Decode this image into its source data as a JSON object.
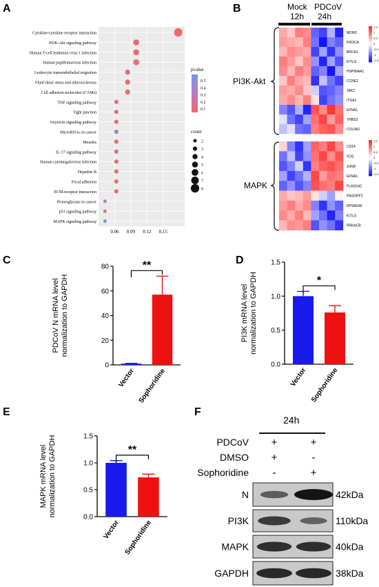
{
  "panels": {
    "A": {
      "label": "A",
      "pathways": [
        "Cytokine-cytokine receptor interaction",
        "PI3K-Akt signaling pathway",
        "Human T-cell leukemia virus 1 infection",
        "Human papillomavirus infection",
        "Leukocyte transendothelial migration",
        "Fluid shear stress and atherosclerosis",
        "Cell adhesion molecules (CAMs)",
        "TNF signaling pathway",
        "Tight junction",
        "Oxytocin signaling pathway",
        "MicroRNAs in cancer",
        "Measles",
        "IL-17 signaling pathway",
        "Human cytomegalovirus infection",
        "Hepatitis B",
        "Focal adhesion",
        "ECM-receptor interaction",
        "Proteoglycans in cancer",
        "p53 signaling pathway",
        "MAPK signaling pathway"
      ],
      "x_ticks": [
        "0.06",
        "0.09",
        "0.12",
        "0.15"
      ],
      "pvalue_title": "pvalue",
      "pvalue_ticks": [
        "0.5",
        "0.4",
        "0.3",
        "0.2",
        "0.1"
      ],
      "count_title": "count",
      "count_ticks": [
        "2",
        "3",
        "4",
        "5",
        "6",
        "7",
        "8"
      ]
    },
    "B": {
      "label": "B",
      "mock": "Mock",
      "mock_time": "12h",
      "pdcov": "PDCoV",
      "pdcov_time": "24h",
      "group1": "PI3K-Akt",
      "group2": "MAPK",
      "genes1": [
        "MDM2",
        "PIK3CA",
        "BRCA1",
        "KITLG",
        "HSP90AA1",
        "CCNE2",
        "JAK2",
        "ITGA1",
        "EFNA1",
        "THBS3",
        "COL9A2"
      ],
      "genes2": [
        "CD14",
        "FOS",
        "JUND",
        "EFNA1",
        "PLA2G4C",
        "RASGRF2",
        "RPS6KA5",
        "KITLG",
        "PRKACB"
      ],
      "legend_ticks": [
        "1.5",
        "1",
        "0.5",
        "0",
        "-0.5",
        "-1",
        "-1.5"
      ]
    },
    "C": {
      "label": "C",
      "ylabel1": "PDCoV N mRNA level",
      "ylabel2": "normalization to GAPDH",
      "sig": "**",
      "y_ticks": [
        "0",
        "20",
        "40",
        "60",
        "80"
      ]
    },
    "D": {
      "label": "D",
      "ylabel1": "PI3K mRNA level",
      "ylabel2": "normalization to GAPDH",
      "sig": "*",
      "y_ticks": [
        "0.0",
        "0.5",
        "1.0",
        "1.5"
      ]
    },
    "E": {
      "label": "E",
      "ylabel1": "MAPK mRNA level",
      "ylabel2": "normalization to GAPDH",
      "sig": "**",
      "y_ticks": [
        "0.0",
        "0.5",
        "1.0",
        "1.5"
      ]
    },
    "F": {
      "label": "F",
      "time": "24h",
      "rows": [
        {
          "name": "PDCoV",
          "lane1": "+",
          "lane2": "+"
        },
        {
          "name": "DMSO",
          "lane1": "+",
          "lane2": "-"
        },
        {
          "name": "Sophoridine",
          "lane1": "-",
          "lane2": "+"
        }
      ],
      "blots": [
        {
          "name": "N",
          "size": "42kDa"
        },
        {
          "name": "PI3K",
          "size": "110kDa"
        },
        {
          "name": "MAPK",
          "size": "40kDa"
        },
        {
          "name": "GAPDH",
          "size": "38kDa"
        }
      ]
    }
  },
  "chart_data": [
    {
      "type": "scatter",
      "panel": "A",
      "categories": [
        "Cytokine-cytokine receptor interaction",
        "PI3K-Akt signaling pathway",
        "Human T-cell leukemia virus 1 infection",
        "Human papillomavirus infection",
        "Leukocyte transendothelial migration",
        "Fluid shear stress and atherosclerosis",
        "Cell adhesion molecules (CAMs)",
        "TNF signaling pathway",
        "Tight junction",
        "Oxytocin signaling pathway",
        "MicroRNAs in cancer",
        "Measles",
        "IL-17 signaling pathway",
        "Human cytomegalovirus infection",
        "Hepatitis B",
        "Focal adhesion",
        "ECM-receptor interaction",
        "Proteoglycans in cancer",
        "p53 signaling pathway",
        "MAPK signaling pathway"
      ],
      "x": [
        0.178,
        0.1,
        0.1,
        0.1,
        0.084,
        0.084,
        0.084,
        0.063,
        0.063,
        0.063,
        0.063,
        0.063,
        0.063,
        0.063,
        0.063,
        0.063,
        0.063,
        0.042,
        0.042,
        0.042
      ],
      "count": [
        8,
        5,
        5,
        5,
        4,
        4,
        4,
        3,
        3,
        3,
        3,
        3,
        3,
        3,
        3,
        3,
        3,
        2,
        2,
        2
      ],
      "pvalue": [
        0.02,
        0.04,
        0.05,
        0.05,
        0.04,
        0.04,
        0.05,
        0.06,
        0.06,
        0.07,
        0.35,
        0.05,
        0.05,
        0.06,
        0.05,
        0.06,
        0.05,
        0.3,
        0.04,
        0.55
      ],
      "xlim": [
        0.03,
        0.19
      ],
      "colors": {
        "low": "#f06a6a",
        "high": "#6a9ae8"
      }
    },
    {
      "type": "bar",
      "panel": "C",
      "categories": [
        "Vector",
        "Sophoridine"
      ],
      "values": [
        1,
        57
      ],
      "errors": [
        0.3,
        15
      ],
      "ylim": [
        0,
        80
      ],
      "colors": [
        "#1a1aee",
        "#ee1111"
      ]
    },
    {
      "type": "bar",
      "panel": "D",
      "categories": [
        "Vector",
        "Sophoridine"
      ],
      "values": [
        1.0,
        0.76
      ],
      "errors": [
        0.07,
        0.1
      ],
      "ylim": [
        0,
        1.5
      ],
      "colors": [
        "#1a1aee",
        "#ee1111"
      ]
    },
    {
      "type": "bar",
      "panel": "E",
      "categories": [
        "Vector",
        "Sophoridine"
      ],
      "values": [
        1.0,
        0.73
      ],
      "errors": [
        0.04,
        0.06
      ],
      "ylim": [
        0,
        1.5
      ],
      "colors": [
        "#1a1aee",
        "#ee1111"
      ]
    }
  ],
  "heatmap": {
    "pi3k": [
      [
        0.6,
        0.4,
        0.9,
        0.8,
        -1,
        -1.2,
        -0.5,
        -1.4
      ],
      [
        0.7,
        0.6,
        0.5,
        0.9,
        -0.9,
        -1.5,
        -0.8,
        -1.0
      ],
      [
        0.5,
        0.8,
        0.7,
        0.6,
        -1.2,
        -0.6,
        -1.3,
        -0.7
      ],
      [
        0.9,
        0.7,
        0.4,
        0.8,
        -0.7,
        -1.4,
        -0.6,
        -1.1
      ],
      [
        0.8,
        0.5,
        0.9,
        0.7,
        -1.0,
        -0.8,
        -1.5,
        -0.6
      ],
      [
        0.4,
        0.9,
        0.6,
        0.5,
        -1.3,
        -0.4,
        -0.9,
        -1.2
      ],
      [
        0.7,
        0.6,
        0.8,
        0.4,
        -0.3,
        -1.1,
        -1.0,
        -0.8
      ],
      [
        0.6,
        0.8,
        0.5,
        0.9,
        0.2,
        -1.2,
        -0.9,
        -0.7
      ],
      [
        -0.8,
        -1.1,
        -0.5,
        -1.4,
        1.2,
        0.8,
        1.4,
        1.0
      ],
      [
        -0.2,
        -0.9,
        -1.2,
        -0.6,
        1.0,
        1.3,
        0.7,
        1.1
      ],
      [
        -0.4,
        -0.2,
        -0.9,
        -1.0,
        0.9,
        1.1,
        1.2,
        0.8
      ]
    ],
    "mapk": [
      [
        0.3,
        -0.8,
        -1.3,
        -0.6,
        1.1,
        0.9,
        1.3,
        0.8
      ],
      [
        -0.9,
        -0.4,
        -1.2,
        -0.7,
        1.0,
        1.3,
        0.8,
        1.2
      ],
      [
        -1.1,
        -0.8,
        -0.3,
        -1.3,
        0.9,
        1.1,
        1.2,
        1.0
      ],
      [
        -0.6,
        -1.2,
        -0.9,
        -0.5,
        1.3,
        0.7,
        1.0,
        0.9
      ],
      [
        -1.0,
        -0.7,
        -1.1,
        -0.8,
        1.2,
        1.0,
        0.9,
        1.3
      ],
      [
        0.6,
        0.4,
        0.5,
        0.7,
        0.2,
        -0.3,
        -0.6,
        0.1
      ],
      [
        0.7,
        0.9,
        0.6,
        0.8,
        -0.8,
        -1.3,
        -0.7,
        -1.0
      ],
      [
        0.8,
        0.6,
        0.9,
        0.5,
        -0.6,
        -0.9,
        -1.4,
        -0.8
      ],
      [
        0.5,
        0.8,
        0.7,
        0.9,
        -1.1,
        -0.7,
        -0.9,
        -1.3
      ]
    ]
  },
  "blot": {
    "N": [
      0.45,
      1.0
    ],
    "PI3K": [
      0.7,
      0.4
    ],
    "MAPK": [
      0.8,
      0.8
    ],
    "GAPDH": [
      0.85,
      0.85
    ]
  }
}
